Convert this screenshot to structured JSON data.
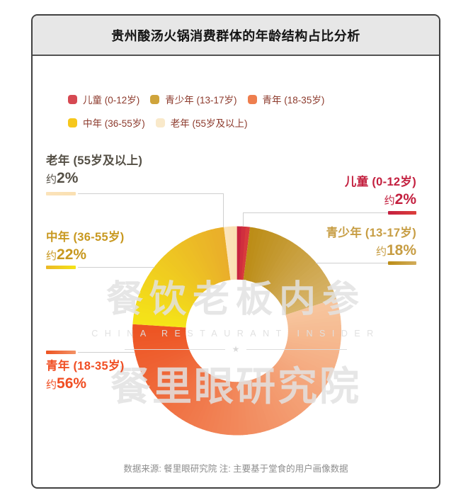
{
  "header": {
    "title": "贵州酸汤火锅消费群体的年龄结构占比分析"
  },
  "chart_data": {
    "type": "pie",
    "donut": true,
    "inner_radius_ratio": 0.49,
    "start_angle_deg": 0,
    "direction": "clockwise",
    "legend_position": "top",
    "unit": "%",
    "title": "贵州酸汤火锅消费群体的年龄结构占比分析",
    "categories": [
      "儿童 (0-12岁)",
      "青少年 (13-17岁)",
      "青年 (18-35岁)",
      "中年 (36-55岁)",
      "老年 (55岁及以上)"
    ],
    "values": [
      2,
      18,
      56,
      22,
      2
    ],
    "slices": [
      {
        "label": "儿童 (0-12岁)",
        "value_pct": 2,
        "prefix": "约",
        "pct_label": "2%",
        "swatch": "#d64952",
        "grad_start": "#c41f40",
        "grad_end": "#dc3f3b",
        "text_color": "#c3203f"
      },
      {
        "label": "青少年 (13-17岁)",
        "value_pct": 18,
        "prefix": "约",
        "pct_label": "18%",
        "swatch": "#cfa43b",
        "grad_start": "#bb8c15",
        "grad_end": "#d8b56c",
        "text_color": "#c79d43"
      },
      {
        "label": "青年 (18-35岁)",
        "value_pct": 56,
        "prefix": "约",
        "pct_label": "56%",
        "swatch": "#ee7e4e",
        "grad_start": "#f7c69e",
        "grad_end": "#ed5322",
        "text_color": "#f04e23"
      },
      {
        "label": "中年 (36-55岁)",
        "value_pct": 22,
        "prefix": "约",
        "pct_label": "22%",
        "swatch": "#f6c71c",
        "grad_start": "#f5e517",
        "grad_end": "#e9ad2b",
        "text_color": "#c8981f"
      },
      {
        "label": "老年 (55岁及以上)",
        "value_pct": 2,
        "prefix": "约",
        "pct_label": "2%",
        "swatch": "#f9e9ca",
        "grad_start": "#fbe3ba",
        "grad_end": "#fae0b2",
        "text_color": "#544f45"
      }
    ]
  },
  "watermark": {
    "line1": "餐饮老板内参",
    "line2": "CHINA RESTAURANT INSIDER",
    "star": "★",
    "line3": "餐里眼研究院"
  },
  "footer": {
    "text": "数据来源: 餐里眼研究院  注: 主要基于堂食的用户画像数据"
  }
}
